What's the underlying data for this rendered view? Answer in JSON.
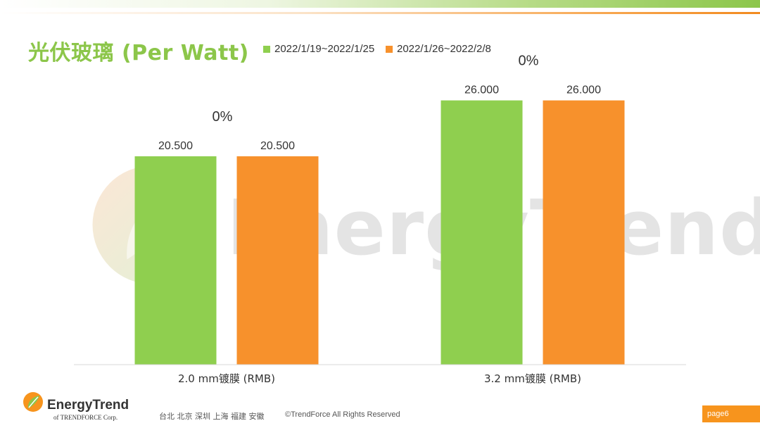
{
  "page": {
    "title": "光伏玻璃 (Per Watt)",
    "footer_brand": "EnergyTrend",
    "footer_sub": "of TRENDFORCE Corp.",
    "footer_cities": "台北  北京  深圳  上海  福建  安徽",
    "footer_copyright": "©TrendForce All Rights Reserved",
    "page_label": "page6",
    "watermark": "EnergyTrend"
  },
  "colors": {
    "green": "#8fcf4f",
    "orange": "#f7912c",
    "title": "#8cc64a"
  },
  "chart_data": {
    "type": "bar",
    "categories": [
      "2.0 mm镀膜 (RMB)",
      "3.2 mm镀膜 (RMB)"
    ],
    "series": [
      {
        "name": "2022/1/19~2022/1/25",
        "values": [
          20.5,
          26.0
        ],
        "labels": [
          "20.500",
          "26.000"
        ]
      },
      {
        "name": "2022/1/26~2022/2/8",
        "values": [
          20.5,
          26.0
        ],
        "labels": [
          "20.500",
          "26.000"
        ]
      }
    ],
    "change_labels": [
      "0%",
      "0%"
    ],
    "ylim": [
      0,
      32
    ],
    "grid": false,
    "legend": "top"
  }
}
